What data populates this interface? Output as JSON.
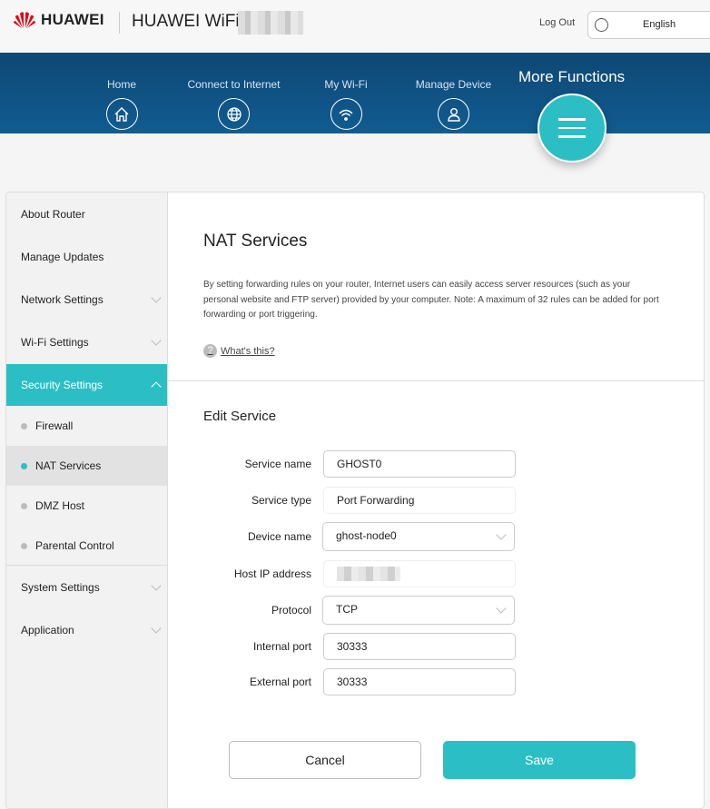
{
  "header": {
    "brand": "HUAWEI",
    "product": "HUAWEI WiFi",
    "logout": "Log Out",
    "language": "English"
  },
  "nav": {
    "items": [
      {
        "label": "Home",
        "icon": "home-icon"
      },
      {
        "label": "Connect to Internet",
        "icon": "globe-icon"
      },
      {
        "label": "My Wi-Fi",
        "icon": "wifi-icon"
      },
      {
        "label": "Manage Device",
        "icon": "user-icon"
      }
    ],
    "more": "More Functions"
  },
  "sidebar": {
    "items": [
      "About Router",
      "Manage Updates",
      "Network Settings",
      "Wi-Fi Settings",
      "Security Settings"
    ],
    "sub": [
      "Firewall",
      "NAT Services",
      "DMZ Host",
      "Parental Control"
    ],
    "after": [
      "System Settings",
      "Application"
    ]
  },
  "main": {
    "title": "NAT Services",
    "description": "By setting forwarding rules on your router, Internet users can easily access server resources (such as your personal website and FTP server) provided by your computer. Note: A maximum of 32 rules can be added for port forwarding or port triggering.",
    "help": "What's this?",
    "section": "Edit Service",
    "form": {
      "service_name_label": "Service name",
      "service_name": "GHOST0",
      "service_type_label": "Service type",
      "service_type": "Port Forwarding",
      "device_label": "Device name",
      "device": "ghost-node0",
      "host_ip_label": "Host IP address",
      "protocol_label": "Protocol",
      "protocol": "TCP",
      "internal_port_label": "Internal port",
      "internal_port": "30333",
      "external_port_label": "External port",
      "external_port": "30333"
    },
    "cancel": "Cancel",
    "save": "Save"
  },
  "colors": {
    "accent": "#2bbfc5",
    "band": "#0e4e80",
    "brand_red": "#e60012"
  }
}
